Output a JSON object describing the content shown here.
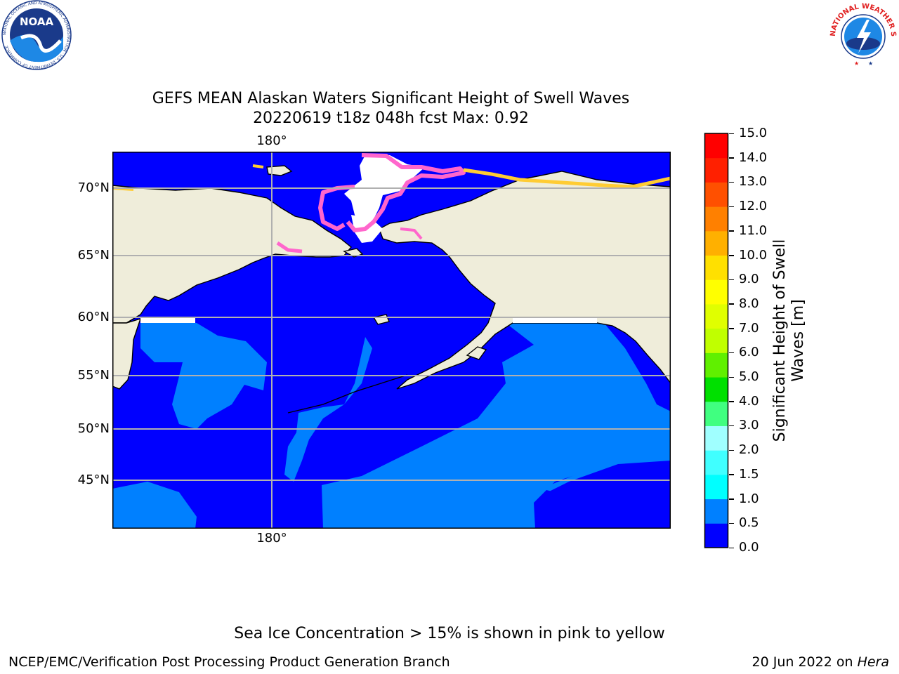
{
  "title": {
    "line1": "GEFS MEAN Alaskan Waters Significant Height of Swell Waves",
    "line2": "20220619 t18z 048h fcst   Max: 0.92"
  },
  "map": {
    "lon_label_top": "180°",
    "lon_label_bottom": "180°",
    "lat_labels": [
      "70°N",
      "65°N",
      "60°N",
      "55°N",
      "50°N",
      "45°N"
    ],
    "colors": {
      "land": "#efedda",
      "sea_low": "#0000ff",
      "sea_mid": "#0080ff",
      "ice": "#ff66cc",
      "ice_edge": "#ffcc33",
      "grid": "#b0b0b0"
    }
  },
  "colorbar": {
    "title": "Significant Height of Swell Waves [m]",
    "ticks": [
      "0.0",
      "0.5",
      "1.0",
      "1.5",
      "2.0",
      "3.0",
      "4.0",
      "5.0",
      "6.0",
      "7.0",
      "8.0",
      "9.0",
      "10.0",
      "11.0",
      "12.0",
      "13.0",
      "14.0",
      "15.0"
    ],
    "colors": [
      "#0000ff",
      "#0080ff",
      "#00ffff",
      "#40ffff",
      "#a0ffff",
      "#40ff80",
      "#00e000",
      "#60f000",
      "#c0ff00",
      "#e0ff00",
      "#ffff00",
      "#ffe000",
      "#ffb000",
      "#ff8000",
      "#ff5000",
      "#ff2000",
      "#ff0000"
    ]
  },
  "note": "Sea Ice Concentration > 15% is shown in pink to yellow",
  "footer": {
    "left": "NCEP/EMC/Verification Post Processing Product Generation Branch",
    "right_date": "20 Jun 2022 on ",
    "right_host": "Hera"
  },
  "logos": {
    "noaa": "NOAA",
    "noaa_ring": "NATIONAL OCEANIC AND ATMOSPHERIC ADMINISTRATION · U.S. DEPARTMENT OF COMMERCE",
    "nws_ring": "NATIONAL WEATHER SERVICE"
  }
}
